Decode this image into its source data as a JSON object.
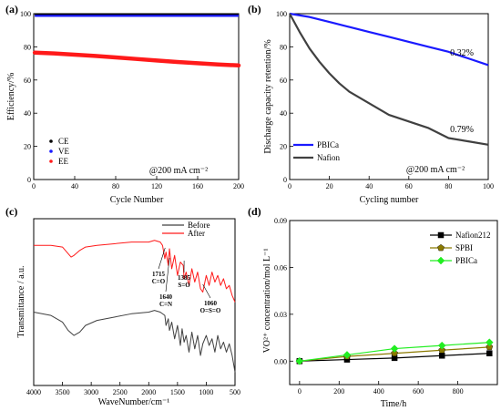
{
  "colors": {
    "black": "#000000",
    "red": "#ff1a1a",
    "blue": "#1a1aff",
    "gray": "#404040",
    "olive": "#8b7a00",
    "green": "#22ee22"
  },
  "chart_data": [
    {
      "id": "a",
      "type": "scatter",
      "panel_label": "(a)",
      "xlabel": "Cycle Number",
      "ylabel": "Efficiency/%",
      "xlim": [
        0,
        200
      ],
      "ylim": [
        0,
        100
      ],
      "x_ticks": [
        "0",
        "40",
        "80",
        "120",
        "160",
        "200"
      ],
      "y_ticks": [
        "0",
        "20",
        "40",
        "60",
        "80",
        "100"
      ],
      "annotation": "@200  mA cm⁻²",
      "series": [
        {
          "name": "CE",
          "color": "#000000",
          "x": [
            1,
            200
          ],
          "y": [
            99.4,
            99.4
          ]
        },
        {
          "name": "VE",
          "color": "#1a1aff",
          "x": [
            1,
            200
          ],
          "y": [
            98.7,
            98.7
          ]
        },
        {
          "name": "EE",
          "color": "#ff1a1a",
          "x": [
            1,
            20,
            40,
            60,
            80,
            100,
            120,
            140,
            160,
            180,
            200
          ],
          "y": [
            76.5,
            76.0,
            75.3,
            74.5,
            73.6,
            72.7,
            71.8,
            70.9,
            70.1,
            69.4,
            68.8
          ]
        }
      ]
    },
    {
      "id": "b",
      "type": "line",
      "panel_label": "(b)",
      "xlabel": "Cycling number",
      "ylabel": "Discharge capacity retention/%",
      "xlim": [
        0,
        100
      ],
      "ylim": [
        0,
        100
      ],
      "x_ticks": [
        "0",
        "20",
        "40",
        "60",
        "80",
        "100"
      ],
      "y_ticks": [
        "0",
        "20",
        "40",
        "60",
        "80",
        "100"
      ],
      "annotation": "@200 mA cm⁻²",
      "labels": {
        "pbica": "0.32%",
        "nafion": "0.79%"
      },
      "series": [
        {
          "name": "PBICa",
          "color": "#1a1aff",
          "x": [
            0,
            10,
            20,
            30,
            40,
            50,
            60,
            70,
            80,
            90,
            100
          ],
          "y": [
            100,
            98,
            95,
            92,
            89,
            86,
            83,
            80,
            77,
            73,
            69
          ]
        },
        {
          "name": "Nafion",
          "color": "#404040",
          "x": [
            0,
            5,
            10,
            15,
            20,
            25,
            30,
            40,
            50,
            60,
            70,
            80,
            90,
            100
          ],
          "y": [
            100,
            89,
            79,
            71,
            64,
            58,
            53,
            46,
            39,
            35,
            31,
            25,
            23,
            21
          ]
        }
      ]
    },
    {
      "id": "c",
      "type": "line",
      "panel_label": "(c)",
      "xlabel": "WaveNumber/cm⁻¹",
      "ylabel": "Transmittance / a.u.",
      "xlim": [
        4000,
        500
      ],
      "ylim": [
        0,
        100
      ],
      "x_ticks": [
        "4000",
        "3500",
        "3000",
        "2500",
        "2000",
        "1500",
        "1000",
        "500"
      ],
      "peak_labels": [
        {
          "text": "1715",
          "sub": "C=O"
        },
        {
          "text": "1640",
          "sub": "C=N"
        },
        {
          "text": "1385",
          "sub": "S=O"
        },
        {
          "text": "1060",
          "sub": "O=S=O"
        }
      ],
      "series": [
        {
          "name": "Before",
          "color": "#404040",
          "x": [
            4000,
            3700,
            3500,
            3400,
            3300,
            3200,
            3100,
            2900,
            2600,
            2300,
            2000,
            1900,
            1800,
            1720,
            1700,
            1660,
            1640,
            1600,
            1550,
            1500,
            1450,
            1420,
            1385,
            1350,
            1300,
            1250,
            1200,
            1150,
            1100,
            1060,
            1000,
            950,
            900,
            850,
            800,
            750,
            700,
            650,
            600,
            550,
            500
          ],
          "y": [
            44,
            42,
            38,
            33,
            30,
            32,
            36,
            39,
            41,
            43,
            44,
            45,
            44,
            42,
            36,
            40,
            33,
            38,
            28,
            36,
            24,
            34,
            26,
            30,
            20,
            32,
            22,
            30,
            18,
            25,
            30,
            24,
            28,
            20,
            30,
            22,
            26,
            20,
            25,
            18,
            8
          ]
        },
        {
          "name": "After",
          "color": "#ff1a1a",
          "x": [
            4000,
            3700,
            3500,
            3400,
            3350,
            3300,
            3200,
            3100,
            2900,
            2600,
            2300,
            2000,
            1900,
            1800,
            1760,
            1720,
            1700,
            1660,
            1640,
            1600,
            1550,
            1500,
            1450,
            1400,
            1385,
            1350,
            1300,
            1250,
            1200,
            1150,
            1100,
            1060,
            1000,
            950,
            900,
            850,
            800,
            750,
            700,
            650,
            600,
            550,
            500
          ],
          "y": [
            84,
            84,
            83,
            79,
            77,
            78,
            81,
            83,
            84,
            85,
            86,
            86,
            87,
            86,
            84,
            76,
            80,
            72,
            82,
            70,
            78,
            66,
            74,
            72,
            64,
            68,
            60,
            70,
            62,
            68,
            58,
            56,
            66,
            60,
            68,
            62,
            66,
            60,
            64,
            58,
            60,
            54,
            50
          ]
        }
      ],
      "legend": [
        "Before",
        "After"
      ]
    },
    {
      "id": "d",
      "type": "line",
      "panel_label": "(d)",
      "xlabel": "Time/h",
      "ylabel": "VO²⁺ concentration/mol L⁻¹",
      "xlim": [
        -50,
        1000
      ],
      "ylim": [
        -0.015,
        0.09
      ],
      "x_ticks": [
        "0",
        "200",
        "400",
        "600",
        "800"
      ],
      "y_ticks": [
        "0.00",
        "0.03",
        "0.06",
        "0.09"
      ],
      "series": [
        {
          "name": "Nafion212",
          "color": "#000000",
          "marker": "square",
          "x": [
            0,
            240,
            480,
            720,
            960
          ],
          "y": [
            0,
            0.001,
            0.002,
            0.0035,
            0.005
          ]
        },
        {
          "name": "SPBI",
          "color": "#8b7a00",
          "marker": "pentagon",
          "x": [
            0,
            240,
            480,
            720,
            960
          ],
          "y": [
            0,
            0.003,
            0.005,
            0.007,
            0.009
          ]
        },
        {
          "name": "PBICa",
          "color": "#22ee22",
          "marker": "diamond",
          "x": [
            0,
            240,
            480,
            720,
            960
          ],
          "y": [
            0,
            0.004,
            0.008,
            0.01,
            0.012
          ]
        }
      ]
    }
  ]
}
